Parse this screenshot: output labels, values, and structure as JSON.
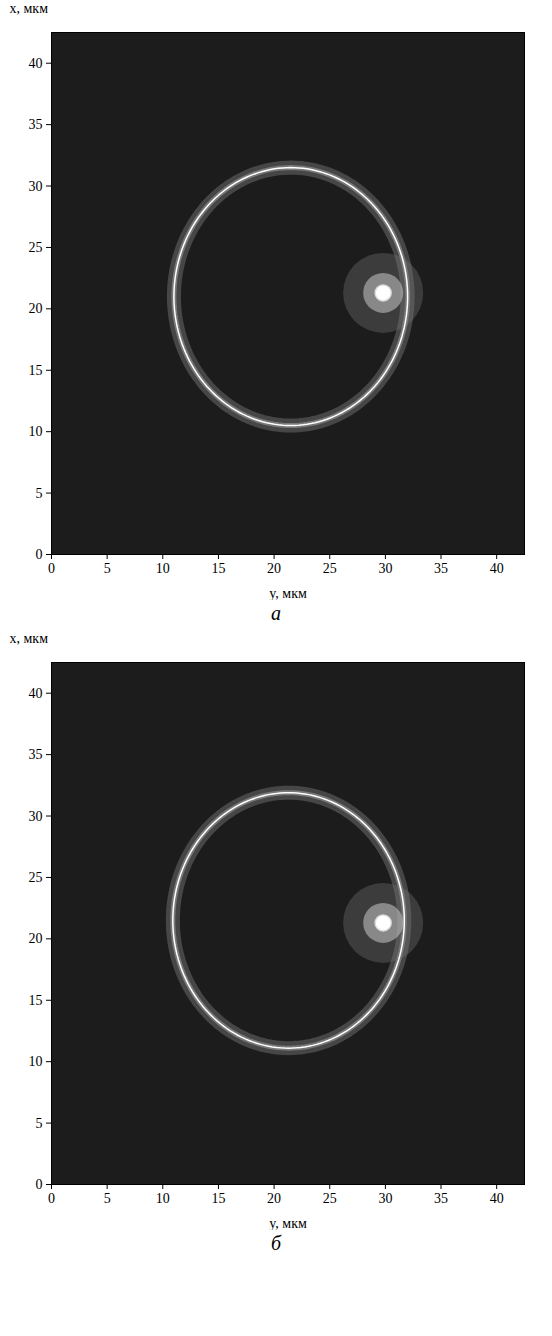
{
  "chart_data": [
    {
      "type": "field_map",
      "panel": "а",
      "xlabel": "y, мкм",
      "ylabel": "x, мкм",
      "xlim": [
        0,
        42.5
      ],
      "ylim": [
        0,
        42.5
      ],
      "xticks": [
        0,
        5,
        10,
        15,
        20,
        25,
        30,
        35,
        40
      ],
      "yticks": [
        0,
        5,
        10,
        15,
        20,
        25,
        30,
        35,
        40
      ],
      "circle": {
        "cx": 21.5,
        "cy": 21.0,
        "r": 10.5
      },
      "focus": {
        "x": 29.8,
        "y": 21.3
      }
    },
    {
      "type": "field_map",
      "panel": "б",
      "xlabel": "y, мкм",
      "ylabel": "x, мкм",
      "xlim": [
        0,
        42.5
      ],
      "ylim": [
        0,
        42.5
      ],
      "xticks": [
        0,
        5,
        10,
        15,
        20,
        25,
        30,
        35,
        40
      ],
      "yticks": [
        0,
        5,
        10,
        15,
        20,
        25,
        30,
        35,
        40
      ],
      "circle": {
        "cx": 21.3,
        "cy": 21.5,
        "r": 10.4
      },
      "focus": {
        "x": 29.8,
        "y": 21.3
      }
    }
  ]
}
